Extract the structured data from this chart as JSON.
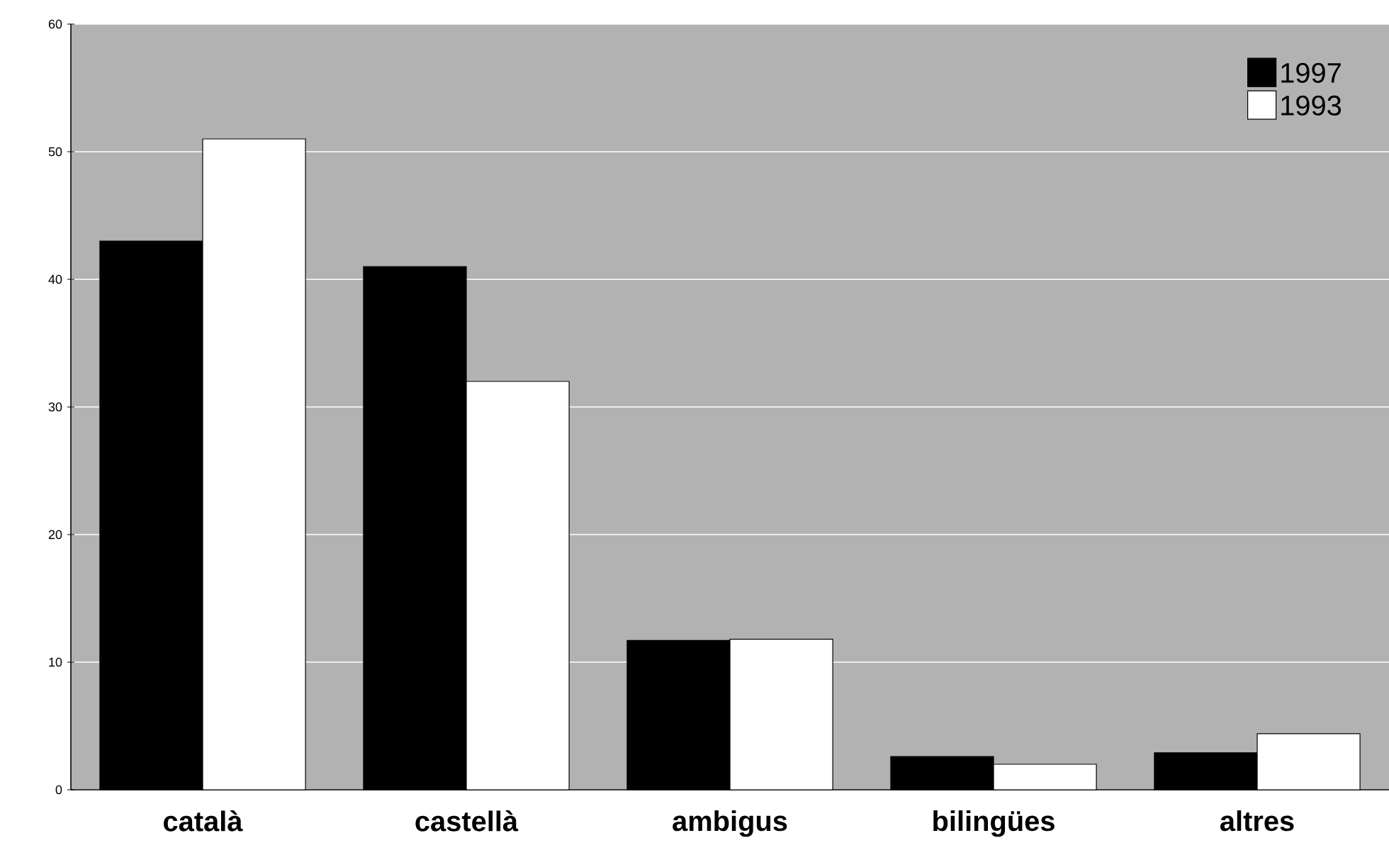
{
  "chart_data": {
    "type": "bar",
    "categories": [
      "català",
      "castellà",
      "ambigus",
      "bilingües",
      "altres"
    ],
    "series": [
      {
        "name": "1997",
        "color": "#000000",
        "values": [
          43,
          41,
          11.7,
          2.6,
          2.9
        ]
      },
      {
        "name": "1993",
        "color": "#ffffff",
        "values": [
          51,
          32,
          11.8,
          2.0,
          4.4
        ]
      }
    ],
    "ylim": [
      0,
      60
    ],
    "yticks": [
      0,
      10,
      20,
      30,
      40,
      50,
      60
    ],
    "grid": "y",
    "legend": "top right"
  }
}
